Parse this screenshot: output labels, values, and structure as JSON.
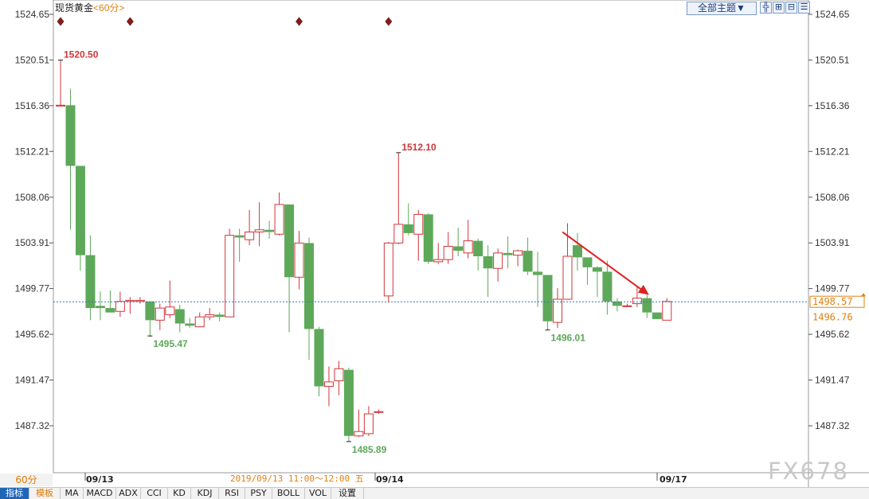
{
  "header": {
    "instrument": "现货黄金",
    "period": "<60分>",
    "theme_button": "全部主题▼",
    "tools": [
      {
        "name": "crosshair-icon",
        "glyph": "╬"
      },
      {
        "name": "zoom-in-icon",
        "glyph": "⊞"
      },
      {
        "name": "zoom-out-icon",
        "glyph": "⊟"
      },
      {
        "name": "menu-icon",
        "glyph": "☰"
      }
    ]
  },
  "footer": {
    "period_label": "60分",
    "date_labels": [
      "09/13",
      "09/14",
      "09/17"
    ],
    "cursor_time": "2019/09/13 11:00～12:00 五",
    "tabs": [
      "指标",
      "模板",
      "MA",
      "MACD",
      "ADX",
      "CCI",
      "KD",
      "KDJ",
      "RSI",
      "PSY",
      "BOLL",
      "VOL",
      "设置"
    ]
  },
  "watermark": "FX678",
  "colors": {
    "up": "#d0363a",
    "down": "#5ea85a",
    "axis_text": "#333333",
    "current_price": "#e08010",
    "arrow": "#e02020",
    "marker": "#8b1a1a"
  },
  "chart_data": {
    "type": "candlestick",
    "title": "现货黄金 <60分>",
    "y_ticks": [
      "1524.65",
      "1520.51",
      "1516.36",
      "1512.21",
      "1508.06",
      "1503.91",
      "1499.77",
      "1495.62",
      "1491.47",
      "1487.32"
    ],
    "ylim": [
      1483.3,
      1525.1
    ],
    "current_price": 1498.57,
    "secondary_price": 1496.76,
    "annotations": [
      {
        "text": "1520.50",
        "index": 0,
        "value": 1520.5,
        "type": "high"
      },
      {
        "text": "1495.47",
        "index": 9,
        "value": 1495.47,
        "type": "low"
      },
      {
        "text": "1485.89",
        "index": 29,
        "value": 1485.89,
        "type": "low"
      },
      {
        "text": "1512.10",
        "index": 34,
        "value": 1512.1,
        "type": "high"
      },
      {
        "text": "1496.01",
        "index": 49,
        "value": 1496.01,
        "type": "low"
      }
    ],
    "event_markers": [
      0,
      7,
      24,
      33
    ],
    "trend_arrow": {
      "from": {
        "index": 50.5,
        "value": 1504.9
      },
      "to": {
        "index": 59.2,
        "value": 1499.2
      }
    },
    "candles": [
      {
        "o": 1516.4,
        "h": 1520.5,
        "l": 1516.4,
        "c": 1516.4
      },
      {
        "o": 1516.4,
        "h": 1517.9,
        "l": 1505.1,
        "c": 1510.9
      },
      {
        "o": 1510.9,
        "h": 1510.9,
        "l": 1501.4,
        "c": 1502.8
      },
      {
        "o": 1502.8,
        "h": 1504.6,
        "l": 1496.9,
        "c": 1498.0
      },
      {
        "o": 1498.2,
        "h": 1499.5,
        "l": 1496.9,
        "c": 1498.0
      },
      {
        "o": 1498.0,
        "h": 1499.6,
        "l": 1497.6,
        "c": 1497.6
      },
      {
        "o": 1497.7,
        "h": 1499.5,
        "l": 1497.2,
        "c": 1498.6
      },
      {
        "o": 1498.6,
        "h": 1499.0,
        "l": 1497.5,
        "c": 1498.7
      },
      {
        "o": 1498.6,
        "h": 1499.0,
        "l": 1498.4,
        "c": 1498.7
      },
      {
        "o": 1498.6,
        "h": 1498.6,
        "l": 1495.4,
        "c": 1496.9
      },
      {
        "o": 1496.9,
        "h": 1498.4,
        "l": 1496.0,
        "c": 1498.0
      },
      {
        "o": 1497.4,
        "h": 1500.5,
        "l": 1497.1,
        "c": 1498.1
      },
      {
        "o": 1497.9,
        "h": 1498.3,
        "l": 1495.8,
        "c": 1496.6
      },
      {
        "o": 1496.6,
        "h": 1497.1,
        "l": 1496.2,
        "c": 1496.4
      },
      {
        "o": 1496.3,
        "h": 1497.6,
        "l": 1496.3,
        "c": 1497.2
      },
      {
        "o": 1497.2,
        "h": 1498.0,
        "l": 1496.9,
        "c": 1497.4
      },
      {
        "o": 1497.4,
        "h": 1497.6,
        "l": 1496.8,
        "c": 1497.2
      },
      {
        "o": 1497.2,
        "h": 1505.2,
        "l": 1497.2,
        "c": 1504.6
      },
      {
        "o": 1504.6,
        "h": 1505.2,
        "l": 1502.2,
        "c": 1504.4
      },
      {
        "o": 1504.2,
        "h": 1506.9,
        "l": 1503.7,
        "c": 1504.9
      },
      {
        "o": 1504.9,
        "h": 1507.6,
        "l": 1503.6,
        "c": 1505.1
      },
      {
        "o": 1505.1,
        "h": 1505.9,
        "l": 1504.3,
        "c": 1504.9
      },
      {
        "o": 1504.7,
        "h": 1508.5,
        "l": 1504.6,
        "c": 1507.4
      },
      {
        "o": 1507.4,
        "h": 1507.4,
        "l": 1495.8,
        "c": 1500.8
      },
      {
        "o": 1500.8,
        "h": 1505.0,
        "l": 1499.7,
        "c": 1503.9
      },
      {
        "o": 1503.9,
        "h": 1504.4,
        "l": 1493.3,
        "c": 1496.1
      },
      {
        "o": 1496.1,
        "h": 1496.3,
        "l": 1490.0,
        "c": 1490.9
      },
      {
        "o": 1490.9,
        "h": 1492.7,
        "l": 1489.1,
        "c": 1491.3
      },
      {
        "o": 1491.4,
        "h": 1493.2,
        "l": 1490.1,
        "c": 1492.5
      },
      {
        "o": 1492.4,
        "h": 1492.6,
        "l": 1485.9,
        "c": 1486.4
      },
      {
        "o": 1486.4,
        "h": 1488.8,
        "l": 1486.3,
        "c": 1486.8
      },
      {
        "o": 1486.6,
        "h": 1489.1,
        "l": 1486.4,
        "c": 1488.4
      },
      {
        "o": 1488.6,
        "h": 1488.8,
        "l": 1488.4,
        "c": 1488.6
      },
      {
        "o": 1499.1,
        "h": 1504.0,
        "l": 1498.5,
        "c": 1503.9
      },
      {
        "o": 1503.9,
        "h": 1512.1,
        "l": 1503.8,
        "c": 1505.6
      },
      {
        "o": 1505.6,
        "h": 1507.5,
        "l": 1504.6,
        "c": 1504.8
      },
      {
        "o": 1504.7,
        "h": 1506.9,
        "l": 1502.3,
        "c": 1506.5
      },
      {
        "o": 1506.5,
        "h": 1506.6,
        "l": 1502.0,
        "c": 1502.2
      },
      {
        "o": 1502.2,
        "h": 1503.9,
        "l": 1502.0,
        "c": 1502.4
      },
      {
        "o": 1502.4,
        "h": 1504.9,
        "l": 1502.0,
        "c": 1503.6
      },
      {
        "o": 1503.6,
        "h": 1505.3,
        "l": 1502.7,
        "c": 1503.2
      },
      {
        "o": 1503.0,
        "h": 1506.0,
        "l": 1502.5,
        "c": 1504.1
      },
      {
        "o": 1504.1,
        "h": 1504.3,
        "l": 1501.4,
        "c": 1502.7
      },
      {
        "o": 1502.7,
        "h": 1503.7,
        "l": 1499.0,
        "c": 1501.6
      },
      {
        "o": 1501.6,
        "h": 1503.4,
        "l": 1500.4,
        "c": 1503.0
      },
      {
        "o": 1503.0,
        "h": 1504.5,
        "l": 1501.6,
        "c": 1502.8
      },
      {
        "o": 1502.8,
        "h": 1503.3,
        "l": 1501.8,
        "c": 1503.2
      },
      {
        "o": 1503.2,
        "h": 1504.4,
        "l": 1501.0,
        "c": 1501.3
      },
      {
        "o": 1501.3,
        "h": 1503.1,
        "l": 1498.1,
        "c": 1501.0
      },
      {
        "o": 1501.0,
        "h": 1501.0,
        "l": 1496.0,
        "c": 1496.8
      },
      {
        "o": 1496.7,
        "h": 1499.8,
        "l": 1496.2,
        "c": 1498.8
      },
      {
        "o": 1498.8,
        "h": 1505.7,
        "l": 1498.8,
        "c": 1502.7
      },
      {
        "o": 1503.7,
        "h": 1504.8,
        "l": 1501.4,
        "c": 1502.6
      },
      {
        "o": 1502.6,
        "h": 1502.6,
        "l": 1500.1,
        "c": 1501.7
      },
      {
        "o": 1501.7,
        "h": 1501.8,
        "l": 1499.0,
        "c": 1501.3
      },
      {
        "o": 1501.3,
        "h": 1502.3,
        "l": 1497.4,
        "c": 1498.6
      },
      {
        "o": 1498.6,
        "h": 1498.9,
        "l": 1497.7,
        "c": 1498.2
      },
      {
        "o": 1498.2,
        "h": 1498.4,
        "l": 1498.1,
        "c": 1498.2
      },
      {
        "o": 1498.4,
        "h": 1500.0,
        "l": 1498.1,
        "c": 1498.9
      },
      {
        "o": 1498.9,
        "h": 1499.2,
        "l": 1497.1,
        "c": 1497.6
      },
      {
        "o": 1497.6,
        "h": 1497.6,
        "l": 1497.0,
        "c": 1497.0
      },
      {
        "o": 1496.9,
        "h": 1498.9,
        "l": 1496.9,
        "c": 1498.6
      }
    ]
  }
}
